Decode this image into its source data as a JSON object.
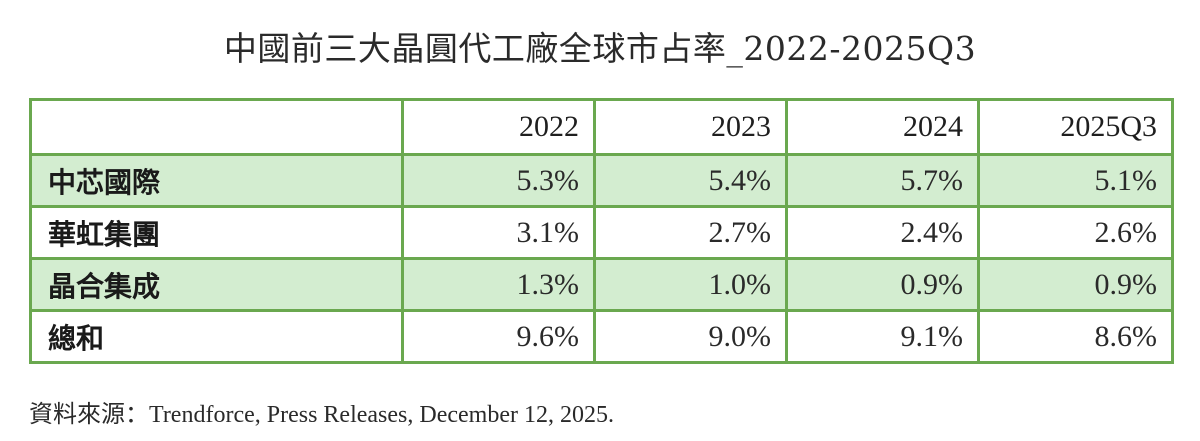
{
  "title": "中國前三大晶圓代工廠全球市占率_2022-2025Q3",
  "chart_data": {
    "type": "table",
    "title": "中國前三大晶圓代工廠全球市占率_2022-2025Q3",
    "columns": [
      "",
      "2022",
      "2023",
      "2024",
      "2025Q3"
    ],
    "rows": [
      {
        "name": "中芯國際",
        "values": [
          "5.3%",
          "5.4%",
          "5.7%",
          "5.1%"
        ]
      },
      {
        "name": "華虹集團",
        "values": [
          "3.1%",
          "2.7%",
          "2.4%",
          "2.6%"
        ]
      },
      {
        "name": "晶合集成",
        "values": [
          "1.3%",
          "1.0%",
          "0.9%",
          "0.9%"
        ]
      },
      {
        "name": "總和",
        "values": [
          "9.6%",
          "9.0%",
          "9.1%",
          "8.6%"
        ]
      }
    ]
  },
  "source": "資料來源：Trendforce, Press Releases, December 12, 2025.",
  "colors": {
    "border": "#6aa84f",
    "row_fill": "#d3edd0"
  }
}
